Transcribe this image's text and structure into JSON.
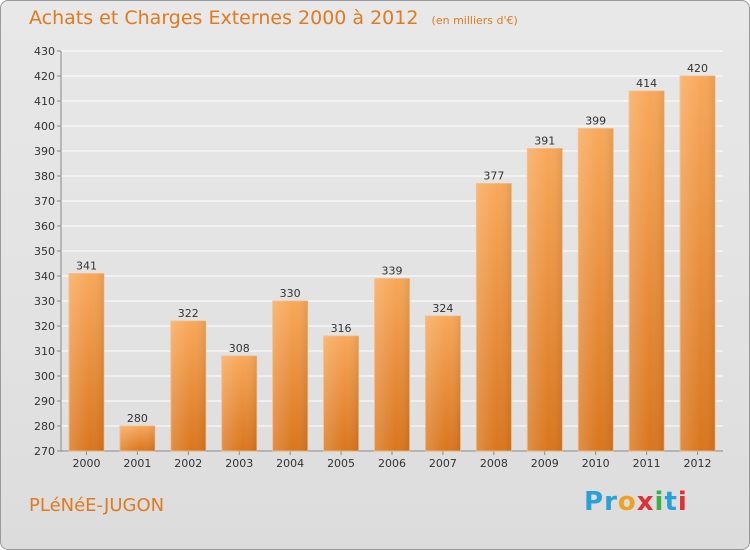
{
  "header": {
    "title": "Achats et Charges Externes 2000 à 2012",
    "unit": "(en milliers d'€)"
  },
  "footer": {
    "commune": "PLéNéE-JUGON",
    "brand_letters": [
      "P",
      "r",
      "o",
      "x",
      "i",
      "t",
      "i"
    ],
    "brand_colors": [
      "#2aa0d8",
      "#2aa0d8",
      "#f0a020",
      "#e03030",
      "#3cb043",
      "#2aa0d8",
      "#e03030"
    ]
  },
  "colors": {
    "accent": "#e07a1e",
    "bar_top": "#f8a85a",
    "bar_bottom": "#d9761e",
    "grid": "#ffffff",
    "text": "#333333"
  },
  "chart_data": {
    "type": "bar",
    "title": "Achats et Charges Externes 2000 à 2012",
    "subtitle": "(en milliers d'€)",
    "categories": [
      "2000",
      "2001",
      "2002",
      "2003",
      "2004",
      "2005",
      "2006",
      "2007",
      "2008",
      "2009",
      "2010",
      "2011",
      "2012"
    ],
    "values": [
      341,
      280,
      322,
      308,
      330,
      316,
      339,
      324,
      377,
      391,
      399,
      414,
      420
    ],
    "ylim": [
      270,
      430
    ],
    "ytick_step": 10,
    "xlabel": "",
    "ylabel": "",
    "grid": true
  }
}
